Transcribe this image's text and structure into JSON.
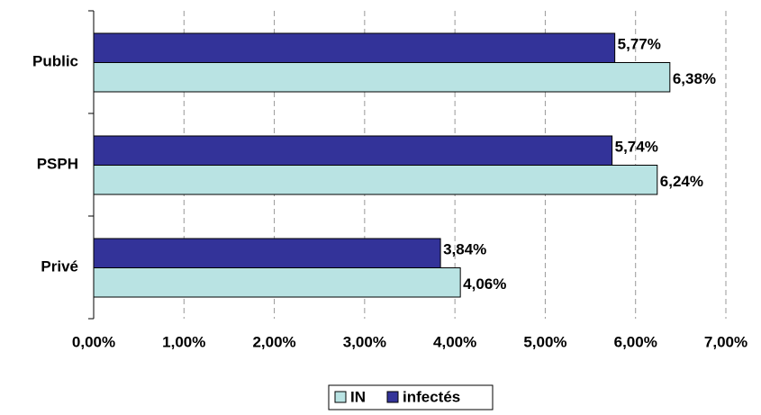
{
  "chart_data": {
    "type": "hbar",
    "categories": [
      "Public",
      "PSPH",
      "Privé"
    ],
    "series": [
      {
        "name": "IN",
        "color": "#b9e3e3",
        "values": [
          6.38,
          6.24,
          4.06
        ],
        "value_labels": [
          "6,38%",
          "6,24%",
          "4,06%"
        ]
      },
      {
        "name": "infectés",
        "color": "#333399",
        "values": [
          5.77,
          5.74,
          3.84
        ],
        "value_labels": [
          "5,77%",
          "5,74%",
          "3,84%"
        ]
      }
    ],
    "xlim": [
      0,
      7
    ],
    "xticks": [
      {
        "value": 0,
        "label": "0,00%"
      },
      {
        "value": 1,
        "label": "1,00%"
      },
      {
        "value": 2,
        "label": "2,00%"
      },
      {
        "value": 3,
        "label": "3,00%"
      },
      {
        "value": 4,
        "label": "4,00%"
      },
      {
        "value": 5,
        "label": "5,00%"
      },
      {
        "value": 6,
        "label": "6,00%"
      },
      {
        "value": 7,
        "label": "7,00%"
      }
    ],
    "grid": true,
    "legend": "bottom"
  }
}
